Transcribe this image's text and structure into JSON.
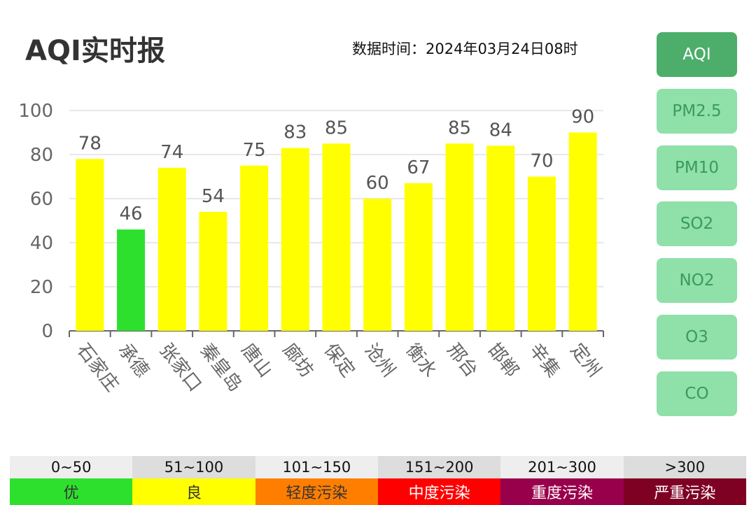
{
  "header": {
    "title": "AQI实时报",
    "time_label": "数据时间：2024年03月24日08时"
  },
  "buttons": [
    "AQI",
    "PM2.5",
    "PM10",
    "SO2",
    "NO2",
    "O3",
    "CO"
  ],
  "active_button": "AQI",
  "legend": {
    "ranges": [
      "0~50",
      "51~100",
      "101~150",
      "151~200",
      "201~300",
      ">300"
    ],
    "levels": [
      "优",
      "良",
      "轻度污染",
      "中度污染",
      "重度污染",
      "严重污染"
    ],
    "range_bg": [
      "#eeeeee",
      "#dddddd",
      "#eeeeee",
      "#dddddd",
      "#eeeeee",
      "#dddddd"
    ],
    "level_bg": [
      "#2ee02e",
      "#ffff00",
      "#ff7e00",
      "#ff0000",
      "#99004c",
      "#7e0023"
    ],
    "level_fg": [
      "#333333",
      "#333333",
      "#333333",
      "#ffffff",
      "#ffffff",
      "#ffffff"
    ]
  },
  "chart_data": {
    "type": "bar",
    "categories": [
      "石家庄",
      "承德",
      "张家口",
      "秦皇岛",
      "唐山",
      "廊坊",
      "保定",
      "沧州",
      "衡水",
      "邢台",
      "邯郸",
      "辛集",
      "定州"
    ],
    "values": [
      78,
      46,
      74,
      54,
      75,
      83,
      85,
      60,
      67,
      85,
      84,
      70,
      90
    ],
    "ylim": [
      0,
      100
    ],
    "yticks": [
      0,
      20,
      40,
      60,
      80,
      100
    ],
    "colors": {
      "good": "#ffff00",
      "excellent": "#2ee02e"
    },
    "grid": true
  }
}
